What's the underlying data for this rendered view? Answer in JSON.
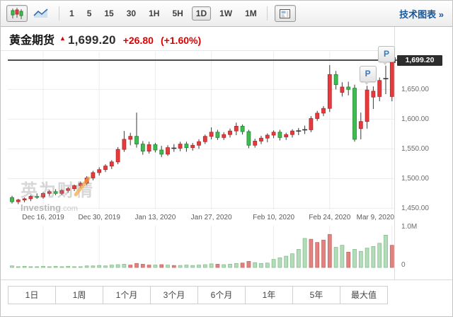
{
  "toolbar": {
    "chart_type_buttons": [
      {
        "name": "candlestick-chart",
        "selected": true
      },
      {
        "name": "line-chart",
        "selected": false
      }
    ],
    "timeframes": [
      {
        "label": "1",
        "selected": false
      },
      {
        "label": "5",
        "selected": false
      },
      {
        "label": "15",
        "selected": false
      },
      {
        "label": "30",
        "selected": false
      },
      {
        "label": "1H",
        "selected": false
      },
      {
        "label": "5H",
        "selected": false
      },
      {
        "label": "1D",
        "selected": true
      },
      {
        "label": "1W",
        "selected": false
      },
      {
        "label": "1M",
        "selected": false
      }
    ],
    "link_label": "技术图表 »"
  },
  "header": {
    "title": "黄金期货",
    "arrow": "▲",
    "price": "1,699.20",
    "change": "+26.80",
    "change_pct": "(+1.60%)"
  },
  "volume_axis": {
    "top": "1.0M",
    "bottom": "0"
  },
  "watermark": {
    "cn": "英为财情",
    "site": "Investing",
    "tld": ".com"
  },
  "range_tabs": [
    "1日",
    "1周",
    "1个月",
    "3个月",
    "6个月",
    "1年",
    "5年",
    "最大值"
  ],
  "colors": {
    "up": "#e8393c",
    "up_border": "#b02a2a",
    "down": "#3fbc4f",
    "down_border": "#1f8a2f",
    "vol_up": "#e2827e",
    "vol_up_border": "#c96560",
    "vol_down": "#b5dcba",
    "vol_down_border": "#7fbc86",
    "grid": "#ececec",
    "wick": "#3a3a3a",
    "doji": "#333333",
    "price_line": "#4f4f4f",
    "tag_bg": "#2d2d2d",
    "accent_red": "#dc0000",
    "link_blue": "#15599e",
    "marker_blue": "#3c78b4",
    "watermark_orange": "#f2a33c",
    "separator": "#dddddd"
  },
  "chart_data": {
    "type": "candlestick",
    "title": "黄金期货 (Gold Futures), 1D",
    "current_price": 1699.2,
    "current_price_label": "1,699.20",
    "y_range": [
      1440,
      1715
    ],
    "y_ticks": [
      {
        "value": 1650,
        "label": "1,650.00"
      },
      {
        "value": 1600,
        "label": "1,600.00"
      },
      {
        "value": 1550,
        "label": "1,550.00"
      },
      {
        "value": 1500,
        "label": "1,500.00"
      },
      {
        "value": 1450,
        "label": "1,450.00"
      }
    ],
    "x_labels": [
      "Dec 16, 2019",
      "Dec 30, 2019",
      "Jan 13, 2020",
      "Jan 27, 2020",
      "Feb 10, 2020",
      "Feb 24, 2020",
      "Mar 9, 2020"
    ],
    "grid_indices": [
      5,
      14,
      23,
      32,
      42,
      51,
      61
    ],
    "volume_ticks": [
      {
        "value": 1.0,
        "label": "1.0M"
      },
      {
        "value": 0,
        "label": "0"
      }
    ],
    "markers": [
      {
        "label": "P",
        "index": 57
      },
      {
        "label": "P",
        "index": 60
      }
    ],
    "candles": [
      [
        1468,
        1471,
        1458,
        1461
      ],
      [
        1461,
        1466,
        1457,
        1464
      ],
      [
        1464,
        1468,
        1460,
        1466
      ],
      [
        1466,
        1472,
        1462,
        1470
      ],
      [
        1470,
        1475,
        1466,
        1469
      ],
      [
        1469,
        1477,
        1466,
        1475
      ],
      [
        1475,
        1481,
        1471,
        1478
      ],
      [
        1478,
        1482,
        1472,
        1475
      ],
      [
        1475,
        1482,
        1472,
        1480
      ],
      [
        1480,
        1486,
        1476,
        1483
      ],
      [
        1483,
        1490,
        1479,
        1488
      ],
      [
        1488,
        1495,
        1484,
        1492
      ],
      [
        1492,
        1504,
        1489,
        1501
      ],
      [
        1501,
        1513,
        1497,
        1510
      ],
      [
        1510,
        1519,
        1505,
        1515
      ],
      [
        1515,
        1524,
        1511,
        1521
      ],
      [
        1521,
        1531,
        1516,
        1528
      ],
      [
        1528,
        1553,
        1524,
        1549
      ],
      [
        1549,
        1580,
        1545,
        1566
      ],
      [
        1566,
        1577,
        1556,
        1571
      ],
      [
        1571,
        1611,
        1552,
        1558
      ],
      [
        1558,
        1563,
        1540,
        1546
      ],
      [
        1546,
        1562,
        1542,
        1557
      ],
      [
        1557,
        1560,
        1544,
        1548
      ],
      [
        1548,
        1555,
        1536,
        1541
      ],
      [
        1541,
        1556,
        1538,
        1552
      ],
      [
        1552,
        1558,
        1545,
        1551,
        "d"
      ],
      [
        1551,
        1562,
        1546,
        1558
      ],
      [
        1558,
        1562,
        1545,
        1552
      ],
      [
        1552,
        1560,
        1547,
        1556
      ],
      [
        1556,
        1566,
        1550,
        1562
      ],
      [
        1562,
        1574,
        1558,
        1571
      ],
      [
        1571,
        1586,
        1566,
        1578
      ],
      [
        1578,
        1582,
        1565,
        1569
      ],
      [
        1569,
        1578,
        1565,
        1574
      ],
      [
        1574,
        1584,
        1569,
        1580
      ],
      [
        1580,
        1594,
        1573,
        1588
      ],
      [
        1588,
        1591,
        1574,
        1579
      ],
      [
        1579,
        1582,
        1551,
        1556
      ],
      [
        1556,
        1567,
        1552,
        1563
      ],
      [
        1563,
        1572,
        1558,
        1568
      ],
      [
        1568,
        1576,
        1561,
        1573
      ],
      [
        1573,
        1581,
        1568,
        1578
      ],
      [
        1578,
        1582,
        1564,
        1569
      ],
      [
        1570,
        1577,
        1565,
        1574
      ],
      [
        1574,
        1583,
        1569,
        1580
      ],
      [
        1579,
        1585,
        1573,
        1580,
        "d"
      ],
      [
        1580,
        1589,
        1575,
        1582,
        "d"
      ],
      [
        1582,
        1605,
        1578,
        1601
      ],
      [
        1601,
        1614,
        1597,
        1610
      ],
      [
        1610,
        1622,
        1605,
        1618
      ],
      [
        1618,
        1691,
        1612,
        1675
      ],
      [
        1675,
        1681,
        1650,
        1658
      ],
      [
        1645,
        1662,
        1638,
        1654
      ],
      [
        1654,
        1663,
        1640,
        1650
      ],
      [
        1652,
        1658,
        1562,
        1566
      ],
      [
        1584,
        1611,
        1566,
        1596
      ],
      [
        1596,
        1656,
        1584,
        1649
      ],
      [
        1637,
        1655,
        1617,
        1647
      ],
      [
        1638,
        1670,
        1630,
        1665
      ],
      [
        1666,
        1690,
        1642,
        1668,
        "d"
      ],
      [
        1638,
        1704,
        1630,
        1699.2
      ]
    ],
    "volumes": [
      [
        0.04,
        "g"
      ],
      [
        0.02,
        "g"
      ],
      [
        0.03,
        "g"
      ],
      [
        0.02,
        "g"
      ],
      [
        0.02,
        "g"
      ],
      [
        0.03,
        "g"
      ],
      [
        0.02,
        "g"
      ],
      [
        0.03,
        "g"
      ],
      [
        0.02,
        "g"
      ],
      [
        0.03,
        "g"
      ],
      [
        0.02,
        "g"
      ],
      [
        0.02,
        "g"
      ],
      [
        0.04,
        "g"
      ],
      [
        0.04,
        "g"
      ],
      [
        0.05,
        "g"
      ],
      [
        0.04,
        "g"
      ],
      [
        0.06,
        "g"
      ],
      [
        0.07,
        "g"
      ],
      [
        0.08,
        "g"
      ],
      [
        0.06,
        "r"
      ],
      [
        0.1,
        "r"
      ],
      [
        0.08,
        "r"
      ],
      [
        0.06,
        "r"
      ],
      [
        0.06,
        "g"
      ],
      [
        0.07,
        "r"
      ],
      [
        0.06,
        "g"
      ],
      [
        0.05,
        "r"
      ],
      [
        0.05,
        "g"
      ],
      [
        0.06,
        "g"
      ],
      [
        0.05,
        "g"
      ],
      [
        0.06,
        "g"
      ],
      [
        0.07,
        "g"
      ],
      [
        0.09,
        "g"
      ],
      [
        0.08,
        "r"
      ],
      [
        0.07,
        "g"
      ],
      [
        0.08,
        "g"
      ],
      [
        0.1,
        "g"
      ],
      [
        0.11,
        "r"
      ],
      [
        0.15,
        "r"
      ],
      [
        0.12,
        "g"
      ],
      [
        0.1,
        "g"
      ],
      [
        0.11,
        "g"
      ],
      [
        0.2,
        "g"
      ],
      [
        0.24,
        "g"
      ],
      [
        0.28,
        "g"
      ],
      [
        0.34,
        "g"
      ],
      [
        0.45,
        "g"
      ],
      [
        0.72,
        "g"
      ],
      [
        0.7,
        "r"
      ],
      [
        0.62,
        "r"
      ],
      [
        0.68,
        "r"
      ],
      [
        0.82,
        "r"
      ],
      [
        0.5,
        "g"
      ],
      [
        0.55,
        "g"
      ],
      [
        0.38,
        "r"
      ],
      [
        0.45,
        "g"
      ],
      [
        0.4,
        "g"
      ],
      [
        0.48,
        "g"
      ],
      [
        0.52,
        "g"
      ],
      [
        0.6,
        "g"
      ],
      [
        0.8,
        "g"
      ],
      [
        0.55,
        "r"
      ]
    ]
  }
}
